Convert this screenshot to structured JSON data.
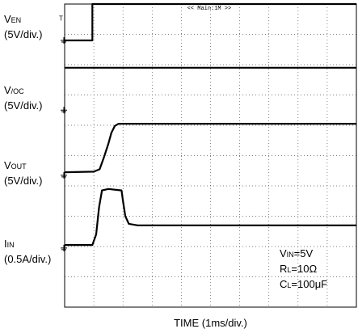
{
  "chart_data": {
    "type": "line",
    "x_divisions": 10,
    "y_divisions": 10,
    "grid": true,
    "grid_style": "dotted",
    "xlabel": "TIME (1ms/div.)",
    "trigger_readout": "<< Main:1M >>",
    "channels": [
      {
        "id": "ven",
        "label_main": "V",
        "label_sub": "EN",
        "scale": "(5V/div.)",
        "ground_marker_div": 8.8,
        "points": [
          [
            0,
            8.8
          ],
          [
            0.95,
            8.8
          ],
          [
            0.95,
            10
          ],
          [
            10,
            10
          ]
        ]
      },
      {
        "id": "voc",
        "label_main": "V",
        "label_sub": "/OC",
        "scale": "(5V/div.)",
        "ground_marker_div": 6.5,
        "points": [
          [
            0,
            7.9
          ],
          [
            10,
            7.9
          ]
        ]
      },
      {
        "id": "vout",
        "label_main": "V",
        "label_sub": "OUT",
        "scale": "(5V/div.)",
        "ground_marker_div": 4.35,
        "points": [
          [
            0,
            4.45
          ],
          [
            1.0,
            4.47
          ],
          [
            1.2,
            4.55
          ],
          [
            1.35,
            4.95
          ],
          [
            1.5,
            5.4
          ],
          [
            1.6,
            5.75
          ],
          [
            1.72,
            5.98
          ],
          [
            1.85,
            6.05
          ],
          [
            3,
            6.05
          ],
          [
            10,
            6.05
          ]
        ]
      },
      {
        "id": "iin",
        "label_main": "I",
        "label_sub": "IN",
        "scale": "(0.5A/div.)",
        "ground_marker_div": 1.95,
        "points": [
          [
            0,
            2.05
          ],
          [
            0.95,
            2.05
          ],
          [
            1.08,
            2.4
          ],
          [
            1.18,
            3.3
          ],
          [
            1.28,
            3.85
          ],
          [
            1.5,
            3.9
          ],
          [
            1.95,
            3.85
          ],
          [
            2.0,
            3.5
          ],
          [
            2.08,
            3.0
          ],
          [
            2.2,
            2.75
          ],
          [
            2.5,
            2.7
          ],
          [
            3.5,
            2.7
          ],
          [
            10,
            2.7
          ]
        ]
      }
    ],
    "annotations": [
      {
        "main": "V",
        "sub": "IN",
        "rest": "=5V"
      },
      {
        "main": "R",
        "sub": "L",
        "rest": "=10Ω"
      },
      {
        "main": "C",
        "sub": "L",
        "rest": "=100μF"
      }
    ]
  }
}
